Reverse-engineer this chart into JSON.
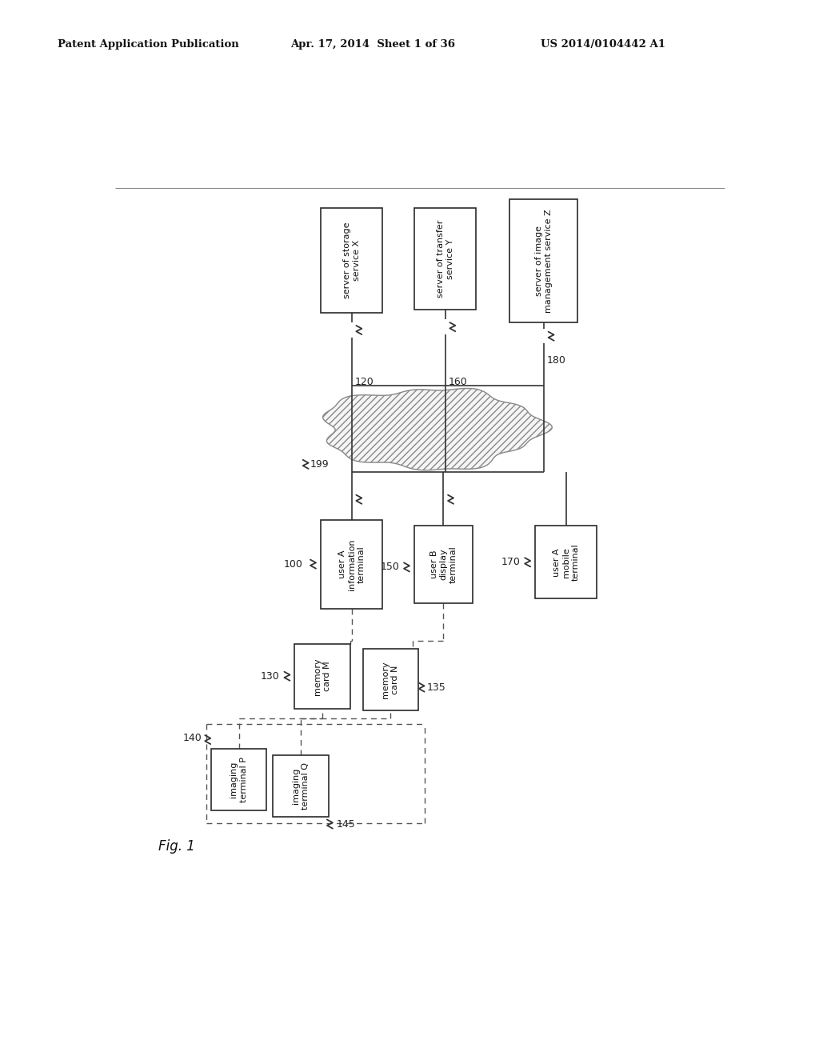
{
  "bg_color": "#ffffff",
  "header_left": "Patent Application Publication",
  "header_mid": "Apr. 17, 2014  Sheet 1 of 36",
  "header_right": "US 2014/0104442 A1",
  "fig_label": "Fig. 1",
  "line_color": "#333333",
  "dash_color": "#555555"
}
